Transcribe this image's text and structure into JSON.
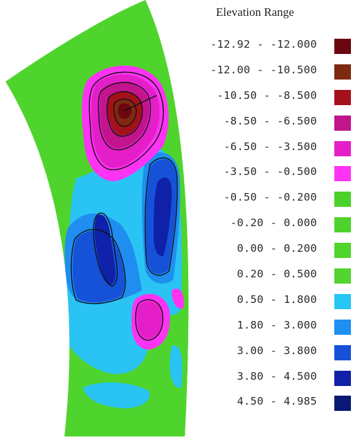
{
  "legend": {
    "title": "Elevation Range",
    "items": [
      {
        "label": "-12.92 - -12.000",
        "color": "#6a0710"
      },
      {
        "label": "-12.00 - -10.500",
        "color": "#7e2a10"
      },
      {
        "label": "-10.50 - -8.500",
        "color": "#a3111a"
      },
      {
        "label": "-8.50 - -6.500",
        "color": "#c2148c"
      },
      {
        "label": "-6.50 - -3.500",
        "color": "#e41fc9"
      },
      {
        "label": "-3.50 - -0.500",
        "color": "#ff33f3"
      },
      {
        "label": "-0.50 - -0.200",
        "color": "#4ad12a"
      },
      {
        "label": "-0.20 - 0.000",
        "color": "#4dd32b"
      },
      {
        "label": "0.00 - 0.200",
        "color": "#4fd52d"
      },
      {
        "label": "0.20 - 0.500",
        "color": "#52d62f"
      },
      {
        "label": "0.50 - 1.800",
        "color": "#28c6f4"
      },
      {
        "label": "1.80 - 3.000",
        "color": "#1f8ff0"
      },
      {
        "label": "3.00 - 3.800",
        "color": "#1552d8"
      },
      {
        "label": "3.80 - 4.500",
        "color": "#0e21a8"
      },
      {
        "label": "4.50 - 4.985",
        "color": "#081874"
      }
    ]
  }
}
